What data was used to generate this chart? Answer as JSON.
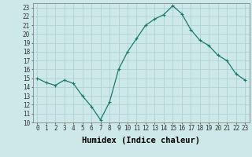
{
  "x": [
    0,
    1,
    2,
    3,
    4,
    5,
    6,
    7,
    8,
    9,
    10,
    11,
    12,
    13,
    14,
    15,
    16,
    17,
    18,
    19,
    20,
    21,
    22,
    23
  ],
  "y": [
    15,
    14.5,
    14.2,
    14.8,
    14.4,
    13.0,
    11.8,
    10.3,
    12.3,
    16.0,
    18.0,
    19.5,
    21.0,
    21.7,
    22.2,
    23.2,
    22.3,
    20.5,
    19.3,
    18.7,
    17.6,
    17.0,
    15.5,
    14.8
  ],
  "line_color": "#1a7a6e",
  "marker": "+",
  "marker_size": 3,
  "marker_lw": 0.8,
  "line_width": 0.9,
  "bg_color": "#cde8e8",
  "grid_color": "#aacece",
  "xlabel": "Humidex (Indice chaleur)",
  "xlim": [
    -0.5,
    23.5
  ],
  "ylim": [
    10,
    23.5
  ],
  "xticks": [
    0,
    1,
    2,
    3,
    4,
    5,
    6,
    7,
    8,
    9,
    10,
    11,
    12,
    13,
    14,
    15,
    16,
    17,
    18,
    19,
    20,
    21,
    22,
    23
  ],
  "yticks": [
    10,
    11,
    12,
    13,
    14,
    15,
    16,
    17,
    18,
    19,
    20,
    21,
    22,
    23
  ],
  "tick_fontsize": 5.5,
  "xlabel_fontsize": 7.5,
  "spine_color": "#888888"
}
